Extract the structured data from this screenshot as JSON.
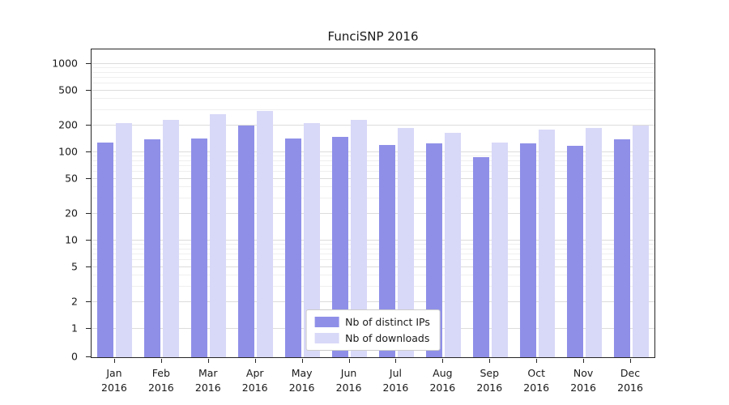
{
  "title": "FunciSNP 2016",
  "y_axis": {
    "tick_labels": [
      "1000",
      "500",
      "200",
      "100",
      "50",
      "20",
      "10",
      "5",
      "2",
      "1",
      "0"
    ]
  },
  "x_axis": {
    "months": [
      "Jan",
      "Feb",
      "Mar",
      "Apr",
      "May",
      "Jun",
      "Jul",
      "Aug",
      "Sep",
      "Oct",
      "Nov",
      "Dec"
    ],
    "year": "2016"
  },
  "legend": {
    "items": [
      {
        "label": "Nb of distinct IPs",
        "color": "#8f8fe8"
      },
      {
        "label": "Nb of downloads",
        "color": "#d8d8f8"
      }
    ]
  },
  "chart_data": {
    "type": "bar",
    "title": "FunciSNP 2016",
    "xlabel": "",
    "ylabel": "",
    "categories": [
      "Jan 2016",
      "Feb 2016",
      "Mar 2016",
      "Apr 2016",
      "May 2016",
      "Jun 2016",
      "Jul 2016",
      "Aug 2016",
      "Sep 2016",
      "Oct 2016",
      "Nov 2016",
      "Dec 2016"
    ],
    "series": [
      {
        "name": "Nb of distinct IPs",
        "color": "#8f8fe8",
        "values": [
          130,
          140,
          143,
          200,
          143,
          148,
          121,
          125,
          88,
          125,
          119,
          140
        ]
      },
      {
        "name": "Nb of downloads",
        "color": "#d8d8f8",
        "values": [
          215,
          235,
          270,
          295,
          212,
          235,
          190,
          165,
          130,
          180,
          190,
          200
        ]
      }
    ],
    "yscale": "log",
    "y_ticks": [
      0,
      1,
      2,
      5,
      10,
      20,
      50,
      100,
      200,
      500,
      1000
    ],
    "ylim": [
      0,
      1000
    ],
    "grid": true,
    "legend_position": "lower center"
  }
}
